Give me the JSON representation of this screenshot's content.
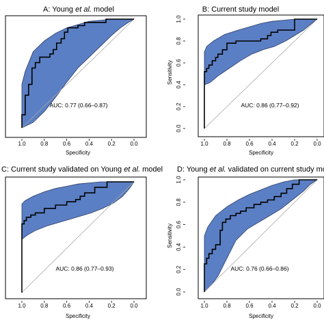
{
  "chart_data": [
    {
      "type": "line",
      "title_parts": [
        "A: Young ",
        "et al.",
        " model"
      ],
      "xlabel": "Specificity",
      "ylabel": "",
      "x_ticks": [
        "1.0",
        "0.8",
        "0.6",
        "0.4",
        "0.2",
        "0.0"
      ],
      "y_ticks": [],
      "xlim": [
        1.0,
        0.0
      ],
      "ylim": [
        0.0,
        1.0
      ],
      "x_reversed": true,
      "annotation": "AUC: 0.77 (0.66–0.87)",
      "roc": {
        "x": [
          1.0,
          1.0,
          0.97,
          0.97,
          0.94,
          0.94,
          0.91,
          0.91,
          0.88,
          0.88,
          0.84,
          0.84,
          0.75,
          0.75,
          0.72,
          0.72,
          0.69,
          0.69,
          0.65,
          0.65,
          0.62,
          0.62,
          0.59,
          0.59,
          0.5,
          0.5,
          0.44,
          0.44,
          0.25,
          0.25,
          0.0
        ],
        "y": [
          0.0,
          0.12,
          0.12,
          0.3,
          0.3,
          0.4,
          0.4,
          0.55,
          0.55,
          0.6,
          0.6,
          0.65,
          0.65,
          0.68,
          0.68,
          0.72,
          0.72,
          0.78,
          0.78,
          0.82,
          0.82,
          0.88,
          0.88,
          0.92,
          0.92,
          0.94,
          0.94,
          0.97,
          0.97,
          1.0,
          1.0
        ]
      },
      "ci_upper": {
        "x": [
          1.0,
          0.97,
          0.9,
          0.8,
          0.7,
          0.6,
          0.5,
          0.4,
          0.3,
          0.2,
          0.1,
          0.0
        ],
        "y": [
          0.4,
          0.52,
          0.7,
          0.8,
          0.87,
          0.92,
          0.95,
          0.98,
          0.99,
          1.0,
          1.0,
          1.0
        ]
      },
      "ci_lower": {
        "x": [
          1.0,
          0.9,
          0.8,
          0.7,
          0.6,
          0.5,
          0.4,
          0.3,
          0.2,
          0.12,
          0.05,
          0.0
        ],
        "y": [
          0.0,
          0.05,
          0.15,
          0.28,
          0.42,
          0.55,
          0.65,
          0.75,
          0.85,
          0.92,
          0.97,
          1.0
        ]
      }
    },
    {
      "type": "line",
      "title_parts": [
        "B: Current study model"
      ],
      "xlabel": "Specificity",
      "ylabel": "Sensitivity",
      "x_ticks": [
        "1.0",
        "0.8",
        "0.6",
        "0.4",
        "0.2",
        "0.0"
      ],
      "y_ticks": [
        "0.0",
        "0.2",
        "0.4",
        "0.6",
        "0.8",
        "1.0"
      ],
      "xlim": [
        1.0,
        0.0
      ],
      "ylim": [
        0.0,
        1.0
      ],
      "x_reversed": true,
      "annotation": "AUC: 0.86 (0.77–0.92)",
      "roc": {
        "x": [
          1.0,
          1.0,
          0.98,
          0.98,
          0.96,
          0.96,
          0.93,
          0.93,
          0.9,
          0.9,
          0.88,
          0.88,
          0.84,
          0.84,
          0.8,
          0.8,
          0.72,
          0.72,
          0.5,
          0.5,
          0.44,
          0.44,
          0.41,
          0.41,
          0.35,
          0.35,
          0.2,
          0.2,
          0.0
        ],
        "y": [
          0.0,
          0.52,
          0.52,
          0.55,
          0.55,
          0.58,
          0.58,
          0.62,
          0.62,
          0.65,
          0.65,
          0.68,
          0.68,
          0.72,
          0.72,
          0.78,
          0.78,
          0.8,
          0.8,
          0.82,
          0.82,
          0.85,
          0.85,
          0.88,
          0.88,
          0.9,
          0.9,
          1.0,
          1.0
        ]
      },
      "ci_upper": {
        "x": [
          1.0,
          0.98,
          0.92,
          0.82,
          0.7,
          0.6,
          0.5,
          0.4,
          0.3,
          0.2,
          0.1,
          0.0
        ],
        "y": [
          0.7,
          0.75,
          0.8,
          0.86,
          0.9,
          0.93,
          0.96,
          0.98,
          0.99,
          1.0,
          1.0,
          1.0
        ]
      },
      "ci_lower": {
        "x": [
          1.0,
          0.95,
          0.88,
          0.78,
          0.68,
          0.58,
          0.48,
          0.38,
          0.28,
          0.2,
          0.12,
          0.05,
          0.0
        ],
        "y": [
          0.4,
          0.42,
          0.48,
          0.55,
          0.62,
          0.68,
          0.72,
          0.75,
          0.8,
          0.85,
          0.9,
          0.96,
          1.0
        ]
      }
    },
    {
      "type": "line",
      "title_parts": [
        "C: Current study validated on Young ",
        "et al.",
        " model"
      ],
      "xlabel": "Specificity",
      "ylabel": "",
      "x_ticks": [
        "1.0",
        "0.8",
        "0.6",
        "0.4",
        "0.2",
        "0.0"
      ],
      "y_ticks": [],
      "xlim": [
        1.0,
        0.0
      ],
      "ylim": [
        0.0,
        1.0
      ],
      "x_reversed": true,
      "annotation": "AUC: 0.86 (0.77–0.93)",
      "roc": {
        "x": [
          1.0,
          1.0,
          0.98,
          0.98,
          0.96,
          0.96,
          0.92,
          0.92,
          0.88,
          0.88,
          0.8,
          0.8,
          0.7,
          0.7,
          0.6,
          0.6,
          0.52,
          0.52,
          0.48,
          0.48,
          0.44,
          0.44,
          0.35,
          0.35,
          0.24,
          0.24,
          0.0
        ],
        "y": [
          0.0,
          0.62,
          0.62,
          0.65,
          0.65,
          0.68,
          0.68,
          0.7,
          0.7,
          0.72,
          0.72,
          0.76,
          0.76,
          0.79,
          0.79,
          0.82,
          0.82,
          0.84,
          0.84,
          0.87,
          0.87,
          0.9,
          0.9,
          0.95,
          0.95,
          1.0,
          1.0
        ]
      },
      "ci_upper": {
        "x": [
          1.0,
          0.97,
          0.9,
          0.8,
          0.7,
          0.6,
          0.5,
          0.4,
          0.3,
          0.2,
          0.1,
          0.0
        ],
        "y": [
          0.8,
          0.83,
          0.87,
          0.91,
          0.94,
          0.96,
          0.98,
          0.99,
          1.0,
          1.0,
          1.0,
          1.0
        ]
      },
      "ci_lower": {
        "x": [
          1.0,
          0.95,
          0.88,
          0.78,
          0.68,
          0.58,
          0.48,
          0.38,
          0.28,
          0.18,
          0.1,
          0.04,
          0.0
        ],
        "y": [
          0.48,
          0.52,
          0.56,
          0.6,
          0.63,
          0.66,
          0.69,
          0.72,
          0.76,
          0.81,
          0.87,
          0.94,
          1.0
        ]
      }
    },
    {
      "type": "line",
      "title_parts": [
        "D: Young ",
        "et al.",
        " validated on current study model"
      ],
      "xlabel": "Specificity",
      "ylabel": "Sensitivity",
      "x_ticks": [
        "1.0",
        "0.8",
        "0.6",
        "0.4",
        "0.2",
        "0.0"
      ],
      "y_ticks": [
        "0.0",
        "0.2",
        "0.4",
        "0.6",
        "0.8",
        "1.0"
      ],
      "xlim": [
        1.0,
        0.0
      ],
      "ylim": [
        0.0,
        1.0
      ],
      "x_reversed": true,
      "annotation": "AUC: 0.76 (0.66–0.86)",
      "roc": {
        "x": [
          1.0,
          1.0,
          0.98,
          0.98,
          0.96,
          0.96,
          0.93,
          0.93,
          0.9,
          0.9,
          0.86,
          0.86,
          0.84,
          0.84,
          0.81,
          0.81,
          0.77,
          0.77,
          0.72,
          0.72,
          0.68,
          0.68,
          0.63,
          0.63,
          0.56,
          0.56,
          0.5,
          0.5,
          0.44,
          0.44,
          0.38,
          0.38,
          0.32,
          0.32,
          0.27,
          0.27,
          0.22,
          0.22,
          0.16,
          0.16,
          0.0
        ],
        "y": [
          0.0,
          0.25,
          0.25,
          0.3,
          0.3,
          0.34,
          0.34,
          0.38,
          0.38,
          0.42,
          0.42,
          0.55,
          0.55,
          0.62,
          0.62,
          0.65,
          0.65,
          0.68,
          0.68,
          0.7,
          0.7,
          0.72,
          0.72,
          0.75,
          0.75,
          0.78,
          0.78,
          0.8,
          0.8,
          0.82,
          0.82,
          0.85,
          0.85,
          0.88,
          0.88,
          0.92,
          0.92,
          0.96,
          0.96,
          1.0,
          1.0
        ]
      },
      "ci_upper": {
        "x": [
          1.0,
          0.97,
          0.9,
          0.8,
          0.7,
          0.6,
          0.5,
          0.4,
          0.3,
          0.2,
          0.12,
          0.0
        ],
        "y": [
          0.5,
          0.58,
          0.68,
          0.76,
          0.82,
          0.87,
          0.91,
          0.95,
          0.98,
          1.0,
          1.0,
          1.0
        ]
      },
      "ci_lower": {
        "x": [
          1.0,
          0.94,
          0.88,
          0.8,
          0.72,
          0.62,
          0.52,
          0.42,
          0.32,
          0.22,
          0.12,
          0.06,
          0.0
        ],
        "y": [
          0.0,
          0.06,
          0.14,
          0.3,
          0.46,
          0.56,
          0.62,
          0.68,
          0.74,
          0.82,
          0.9,
          0.96,
          1.0
        ]
      }
    }
  ],
  "colors": {
    "band_fill": "#5b7fc4",
    "band_edge": "#2d3e63",
    "roc_line": "#000000",
    "diagonal": "#a8a8a8"
  }
}
